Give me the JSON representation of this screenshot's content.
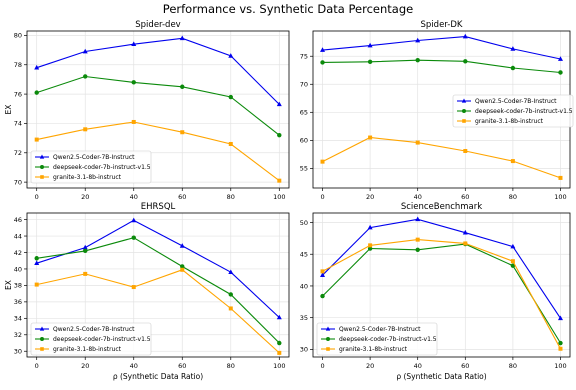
{
  "suptitle": "Performance vs. Synthetic Data Percentage",
  "colors": {
    "Qwen2.5-Coder-7B-Instruct": "#0000ee",
    "deepseek-coder-7b-instruct-v1.5": "#0b8a0b",
    "granite-3.1-8b-instruct": "#ffa500"
  },
  "markers": {
    "Qwen2.5-Coder-7B-Instruct": "triangle",
    "deepseek-coder-7b-instruct-v1.5": "circle",
    "granite-3.1-8b-instruct": "square"
  },
  "chart_data": [
    {
      "type": "line",
      "title": "Spider-dev",
      "xlabel": "",
      "ylabel": "EX",
      "x": [
        0,
        20,
        40,
        60,
        80,
        100
      ],
      "xticks": [
        0,
        20,
        40,
        60,
        80,
        100
      ],
      "xlim": [
        -4,
        104
      ],
      "ylim": [
        69.6,
        80.3
      ],
      "yticks": [
        70,
        72,
        74,
        76,
        78,
        80
      ],
      "grid": true,
      "legend": "lower-left",
      "series": [
        {
          "name": "Qwen2.5-Coder-7B-Instruct",
          "values": [
            77.8,
            78.9,
            79.4,
            79.8,
            78.6,
            75.3
          ]
        },
        {
          "name": "deepseek-coder-7b-instruct-v1.5",
          "values": [
            76.1,
            77.2,
            76.8,
            76.5,
            75.8,
            73.2
          ]
        },
        {
          "name": "granite-3.1-8b-instruct",
          "values": [
            72.9,
            73.6,
            74.1,
            73.4,
            72.6,
            70.1
          ]
        }
      ]
    },
    {
      "type": "line",
      "title": "Spider-DK",
      "xlabel": "",
      "ylabel": "",
      "x": [
        0,
        20,
        40,
        60,
        80,
        100
      ],
      "xticks": [
        0,
        20,
        40,
        60,
        80,
        100
      ],
      "xlim": [
        -4,
        104
      ],
      "ylim": [
        51.5,
        79.5
      ],
      "yticks": [
        55,
        60,
        65,
        70,
        75
      ],
      "grid": true,
      "legend": "center-right",
      "series": [
        {
          "name": "Qwen2.5-Coder-7B-Instruct",
          "values": [
            76.1,
            76.9,
            77.8,
            78.5,
            76.3,
            74.5
          ]
        },
        {
          "name": "deepseek-coder-7b-instruct-v1.5",
          "values": [
            73.9,
            74.0,
            74.3,
            74.1,
            72.9,
            72.1
          ]
        },
        {
          "name": "granite-3.1-8b-instruct",
          "values": [
            56.2,
            60.5,
            59.6,
            58.1,
            56.3,
            53.3
          ]
        }
      ]
    },
    {
      "type": "line",
      "title": "EHRSQL",
      "xlabel": "ρ (Synthetic Data Ratio)",
      "ylabel": "EX",
      "x": [
        0,
        20,
        40,
        60,
        80,
        100
      ],
      "xticks": [
        0,
        20,
        40,
        60,
        80,
        100
      ],
      "xlim": [
        -4,
        104
      ],
      "ylim": [
        29.3,
        46.8
      ],
      "yticks": [
        30,
        32,
        34,
        36,
        38,
        40,
        42,
        44,
        46
      ],
      "grid": true,
      "legend": "lower-left",
      "series": [
        {
          "name": "Qwen2.5-Coder-7B-Instruct",
          "values": [
            40.7,
            42.6,
            45.9,
            42.8,
            39.6,
            34.1
          ]
        },
        {
          "name": "deepseek-coder-7b-instruct-v1.5",
          "values": [
            41.3,
            42.2,
            43.8,
            40.3,
            36.9,
            31.0
          ]
        },
        {
          "name": "granite-3.1-8b-instruct",
          "values": [
            38.1,
            39.4,
            37.8,
            39.9,
            35.2,
            29.8
          ]
        }
      ]
    },
    {
      "type": "line",
      "title": "ScienceBenchmark",
      "xlabel": "ρ (Synthetic Data Ratio)",
      "ylabel": "",
      "x": [
        0,
        20,
        40,
        60,
        80,
        100
      ],
      "xticks": [
        0,
        20,
        40,
        60,
        80,
        100
      ],
      "xlim": [
        -4,
        104
      ],
      "ylim": [
        28.8,
        51.5
      ],
      "yticks": [
        30,
        35,
        40,
        45,
        50
      ],
      "grid": true,
      "legend": "lower-left",
      "series": [
        {
          "name": "Qwen2.5-Coder-7B-Instruct",
          "values": [
            41.7,
            49.2,
            50.5,
            48.4,
            46.2,
            34.9
          ]
        },
        {
          "name": "deepseek-coder-7b-instruct-v1.5",
          "values": [
            38.4,
            45.9,
            45.7,
            46.6,
            43.2,
            31.0
          ]
        },
        {
          "name": "granite-3.1-8b-instruct",
          "values": [
            42.3,
            46.4,
            47.3,
            46.7,
            43.9,
            30.1
          ]
        }
      ]
    }
  ]
}
